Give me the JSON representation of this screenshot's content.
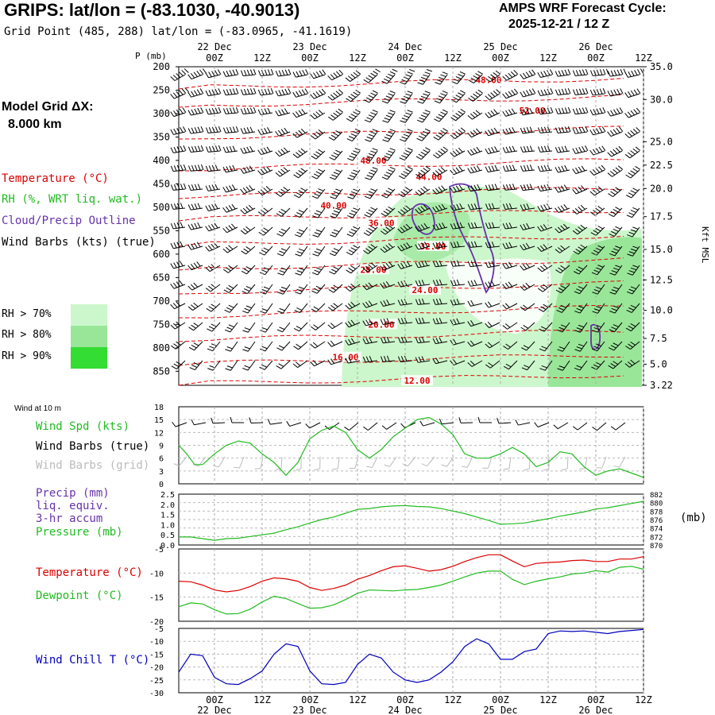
{
  "header": {
    "title": "GRIPS:  lat/lon = (-83.1030, -40.9013)",
    "subtitle": "Grid Point (485, 288) lat/lon = (-83.0965, -41.1619)",
    "cycle_line1": "AMPS WRF Forecast Cycle:",
    "cycle_line2": "2025-12-21 / 12  Z"
  },
  "left_panel": {
    "grid_label": "Model Grid ΔX:",
    "grid_value": "8.000 km",
    "legend": {
      "temperature": "Temperature (°C)",
      "rh": "RH (%, WRT liq. wat.)",
      "cloud": "Cloud/Precip Outline",
      "wind": "Wind Barbs (kts) (true)"
    },
    "rh_keys": [
      {
        "label": "RH > 70%",
        "color": "#ccf7cc"
      },
      {
        "label": "RH > 80%",
        "color": "#99e699"
      },
      {
        "label": "RH > 90%",
        "color": "#33dd33"
      }
    ]
  },
  "lower_legends": {
    "wind_at_10m": "Wind at 10 m",
    "wind_spd": "Wind Spd (kts)",
    "wind_barbs_true": "Wind Barbs (true)",
    "wind_barbs_grid": "Wind Barbs (grid)",
    "precip1": "Precip (mm)",
    "precip2": "liq. equiv.",
    "precip3": "3-hr accum",
    "pressure": "Pressure (mb)",
    "pressure_units": "(mb)",
    "temperature": "Temperature (°C)",
    "dewpoint": "Dewpoint (°C)",
    "windchill": "Wind Chill T (°C)"
  },
  "colors": {
    "temperature": "#dd0000",
    "rh": "#22bb22",
    "cloud": "#6633aa",
    "windchill": "#0000bb",
    "grid_barbs": "#bbbbbb"
  },
  "chart_data": {
    "time_axis": {
      "hours": [
        0,
        12,
        24,
        36,
        48,
        60,
        72,
        84,
        96,
        108
      ],
      "tick_labels": [
        "00Z",
        "12Z",
        "00Z",
        "12Z",
        "00Z",
        "12Z",
        "00Z",
        "12Z",
        "00Z",
        "12Z"
      ],
      "date_labels": [
        {
          "hour": 0,
          "label": "22 Dec"
        },
        {
          "hour": 24,
          "label": "23 Dec"
        },
        {
          "hour": 48,
          "label": "24 Dec"
        },
        {
          "hour": 72,
          "label": "25 Dec"
        },
        {
          "hour": 96,
          "label": "26 Dec"
        }
      ],
      "range_hours": [
        -9,
        108
      ]
    },
    "cross_section": {
      "type": "time-height",
      "pressure_label": "P (mb)",
      "pressure_levels": [
        200,
        250,
        300,
        350,
        400,
        450,
        500,
        550,
        600,
        650,
        700,
        750,
        800,
        850
      ],
      "pressure_range": [
        200,
        880
      ],
      "kft_label": "Kft MSL",
      "kft_labels": [
        {
          "p": 200,
          "label": "35.0"
        },
        {
          "p": 270,
          "label": "30.0"
        },
        {
          "p": 360,
          "label": "25.0"
        },
        {
          "p": 410,
          "label": "22.5"
        },
        {
          "p": 460,
          "label": "20.0"
        },
        {
          "p": 520,
          "label": "17.5"
        },
        {
          "p": 590,
          "label": "15.0"
        },
        {
          "p": 655,
          "label": "12.5"
        },
        {
          "p": 720,
          "label": "10.0"
        },
        {
          "p": 780,
          "label": "7.5"
        },
        {
          "p": 835,
          "label": "5.0"
        },
        {
          "p": 880,
          "label": "3.22"
        }
      ],
      "temperature_labels": [
        {
          "hour": 69,
          "p": 235,
          "label": "48.00"
        },
        {
          "hour": 80,
          "p": 300,
          "label": "52.00"
        },
        {
          "hour": 40,
          "p": 407,
          "label": "48.00"
        },
        {
          "hour": 54,
          "p": 442,
          "label": "44.00"
        },
        {
          "hour": 30,
          "p": 503,
          "label": "40.00"
        },
        {
          "hour": 42,
          "p": 540,
          "label": "36.00"
        },
        {
          "hour": 55,
          "p": 590,
          "label": "32.00"
        },
        {
          "hour": 40,
          "p": 640,
          "label": "28.00"
        },
        {
          "hour": 53,
          "p": 683,
          "label": "24.00"
        },
        {
          "hour": 42,
          "p": 757,
          "label": "20.00"
        },
        {
          "hour": 33,
          "p": 827,
          "label": "16.00"
        },
        {
          "hour": 51,
          "p": 877,
          "label": "12.00"
        }
      ]
    },
    "wind_speed": {
      "type": "line",
      "ylabel": "Wind Spd (kts)",
      "ylim": [
        0,
        18
      ],
      "yticks": [
        0,
        3,
        6,
        9,
        12,
        15,
        18
      ],
      "x": [
        -9,
        -7,
        -5,
        -3,
        0,
        3,
        6,
        9,
        12,
        15,
        18,
        21,
        24,
        27,
        30,
        33,
        36,
        39,
        42,
        45,
        48,
        51,
        54,
        57,
        60,
        63,
        66,
        69,
        72,
        75,
        78,
        81,
        84,
        87,
        90,
        93,
        96,
        99,
        102,
        105,
        108
      ],
      "values": [
        9,
        7,
        4.5,
        4.5,
        7,
        9,
        10,
        9.5,
        7,
        5,
        2,
        5,
        10.5,
        12.5,
        13.5,
        12,
        8,
        6,
        8,
        11,
        13,
        15,
        15.5,
        14,
        11.5,
        7,
        6,
        6,
        7,
        8.5,
        7,
        4,
        5,
        7.5,
        7,
        4,
        2,
        3,
        3.5,
        2.5,
        1.5
      ]
    },
    "pressure": {
      "type": "line",
      "ylabel": "Pressure (mb)",
      "precip_ylim": [
        0,
        2.5
      ],
      "precip_yticks": [
        0,
        0.5,
        1.0,
        1.5,
        2.0,
        2.5
      ],
      "ylim": [
        870,
        882
      ],
      "yticks": [
        870,
        872,
        874,
        876,
        878,
        880,
        882
      ],
      "x": [
        -9,
        -6,
        -3,
        0,
        3,
        6,
        9,
        12,
        15,
        18,
        21,
        24,
        27,
        30,
        33,
        36,
        39,
        42,
        45,
        48,
        51,
        54,
        57,
        60,
        63,
        66,
        69,
        72,
        75,
        78,
        81,
        84,
        87,
        90,
        93,
        96,
        99,
        102,
        105,
        108
      ],
      "values": [
        871.9,
        871.9,
        871.5,
        871.1,
        871.5,
        871.6,
        872.0,
        872.4,
        872.8,
        873.6,
        874.3,
        875.2,
        876.0,
        876.6,
        877.5,
        878.4,
        878.6,
        879.0,
        879.2,
        879.3,
        879.1,
        879.0,
        878.6,
        878.0,
        877.4,
        876.6,
        875.8,
        874.9,
        875.0,
        875.2,
        875.7,
        876.2,
        876.8,
        877.3,
        877.8,
        878.5,
        878.8,
        879.3,
        879.8,
        880.3
      ]
    },
    "temperature": {
      "type": "line",
      "ylim": [
        -20,
        -5
      ],
      "yticks": [
        -20,
        -15,
        -10,
        -5
      ],
      "series": [
        {
          "name": "Temperature (°C)",
          "color": "#dd0000",
          "x": [
            -9,
            -6,
            -3,
            0,
            3,
            6,
            9,
            12,
            15,
            18,
            21,
            24,
            27,
            30,
            33,
            36,
            39,
            42,
            45,
            48,
            51,
            54,
            57,
            60,
            63,
            66,
            69,
            72,
            75,
            78,
            81,
            84,
            87,
            90,
            93,
            96,
            99,
            102,
            105,
            108
          ],
          "values": [
            -11.7,
            -11.8,
            -12.5,
            -13.5,
            -13.9,
            -13.6,
            -12.8,
            -11.7,
            -11.0,
            -11.2,
            -11.7,
            -13.0,
            -13.6,
            -13.2,
            -12.5,
            -11.3,
            -10.5,
            -9.5,
            -8.7,
            -8.5,
            -9.0,
            -9.6,
            -9.3,
            -8.6,
            -7.6,
            -6.8,
            -6.2,
            -6.2,
            -7.5,
            -8.7,
            -8.0,
            -7.8,
            -7.7,
            -7.4,
            -7.3,
            -7.6,
            -7.6,
            -7.1,
            -7.1,
            -6.6
          ]
        },
        {
          "name": "Dewpoint (°C)",
          "color": "#22bb22",
          "x": [
            -9,
            -6,
            -3,
            0,
            3,
            6,
            9,
            12,
            15,
            18,
            21,
            24,
            27,
            30,
            33,
            36,
            39,
            42,
            45,
            48,
            51,
            54,
            57,
            60,
            63,
            66,
            69,
            72,
            75,
            78,
            81,
            84,
            87,
            90,
            93,
            96,
            99,
            102,
            105,
            108
          ],
          "values": [
            -17.0,
            -16.2,
            -16.4,
            -17.6,
            -18.5,
            -18.4,
            -17.5,
            -16.0,
            -14.8,
            -15.3,
            -16.3,
            -17.3,
            -17.2,
            -16.6,
            -15.5,
            -14.2,
            -13.5,
            -13.6,
            -13.7,
            -13.5,
            -13.4,
            -13.0,
            -12.5,
            -11.7,
            -10.8,
            -10.0,
            -9.6,
            -9.6,
            -11.3,
            -12.4,
            -11.7,
            -11.2,
            -10.8,
            -10.2,
            -10.0,
            -9.5,
            -9.8,
            -8.8,
            -8.6,
            -9.2
          ]
        }
      ]
    },
    "wind_chill": {
      "type": "line",
      "ylabel": "Wind Chill T (°C)",
      "ylim": [
        -30,
        -5
      ],
      "yticks": [
        -30,
        -25,
        -20,
        -15,
        -10,
        -5
      ],
      "x": [
        -9,
        -6,
        -3,
        0,
        3,
        6,
        9,
        12,
        15,
        18,
        21,
        24,
        27,
        30,
        33,
        36,
        39,
        42,
        45,
        48,
        51,
        54,
        57,
        60,
        63,
        66,
        69,
        72,
        75,
        78,
        81,
        84,
        87,
        90,
        93,
        96,
        99,
        102,
        105,
        108
      ],
      "values": [
        -22,
        -15,
        -15.6,
        -24,
        -26.5,
        -26.8,
        -24.5,
        -21.5,
        -15,
        -11,
        -12,
        -21.5,
        -26.5,
        -26.8,
        -26,
        -19,
        -15,
        -16.5,
        -22,
        -25,
        -26,
        -25,
        -22,
        -18,
        -12,
        -9,
        -11,
        -17,
        -17,
        -14,
        -13,
        -7,
        -6,
        -6.2,
        -6,
        -6.5,
        -7,
        -6.2,
        -5.8,
        -5.4
      ]
    }
  }
}
